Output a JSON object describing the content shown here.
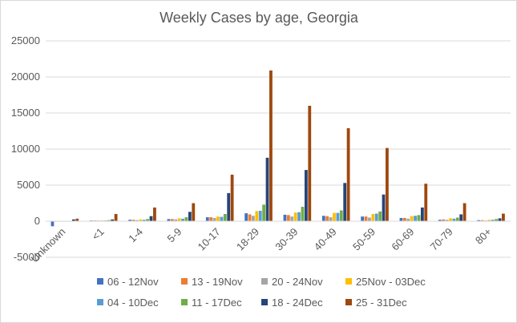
{
  "chart_data": {
    "type": "bar",
    "title": "Weekly Cases by age, Georgia",
    "xlabel": "",
    "ylabel": "",
    "ylim": [
      -5000,
      25000
    ],
    "y_ticks": [
      -5000,
      0,
      5000,
      10000,
      15000,
      20000,
      25000
    ],
    "grid": true,
    "legend_position": "bottom",
    "categories": [
      "Unknown",
      "<1",
      "1-4",
      "5-9",
      "10-17",
      "18-29",
      "30-39",
      "40-49",
      "50-59",
      "60-69",
      "70-79",
      "80+"
    ],
    "series": [
      {
        "name": "06 - 12Nov",
        "color": "#4472c4",
        "values": [
          -700,
          100,
          200,
          300,
          550,
          1100,
          900,
          750,
          650,
          450,
          200,
          150
        ]
      },
      {
        "name": "13 - 19Nov",
        "color": "#ed7d31",
        "values": [
          -50,
          100,
          200,
          300,
          550,
          950,
          850,
          700,
          650,
          450,
          250,
          150
        ]
      },
      {
        "name": "20 - 24Nov",
        "color": "#a5a5a5",
        "values": [
          -30,
          100,
          150,
          250,
          450,
          750,
          650,
          550,
          500,
          350,
          200,
          100
        ]
      },
      {
        "name": "25Nov - 03Dec",
        "color": "#ffc000",
        "values": [
          -20,
          100,
          250,
          400,
          650,
          1400,
          1200,
          1150,
          1000,
          700,
          400,
          200
        ]
      },
      {
        "name": "04 - 10Dec",
        "color": "#5b9bd5",
        "values": [
          -20,
          100,
          200,
          350,
          600,
          1450,
          1250,
          1150,
          1050,
          750,
          350,
          200
        ]
      },
      {
        "name": "11 - 17Dec",
        "color": "#70ad47",
        "values": [
          -20,
          150,
          300,
          550,
          1000,
          2300,
          2000,
          1500,
          1350,
          850,
          500,
          300
        ]
      },
      {
        "name": "18 - 24Dec",
        "color": "#264478",
        "values": [
          250,
          250,
          700,
          1300,
          3900,
          8800,
          7100,
          5300,
          3700,
          1900,
          950,
          400
        ]
      },
      {
        "name": "25 - 31Dec",
        "color": "#9e480e",
        "values": [
          350,
          1000,
          1900,
          2500,
          6450,
          20900,
          16000,
          12900,
          10150,
          5200,
          2500,
          1050
        ]
      }
    ]
  }
}
